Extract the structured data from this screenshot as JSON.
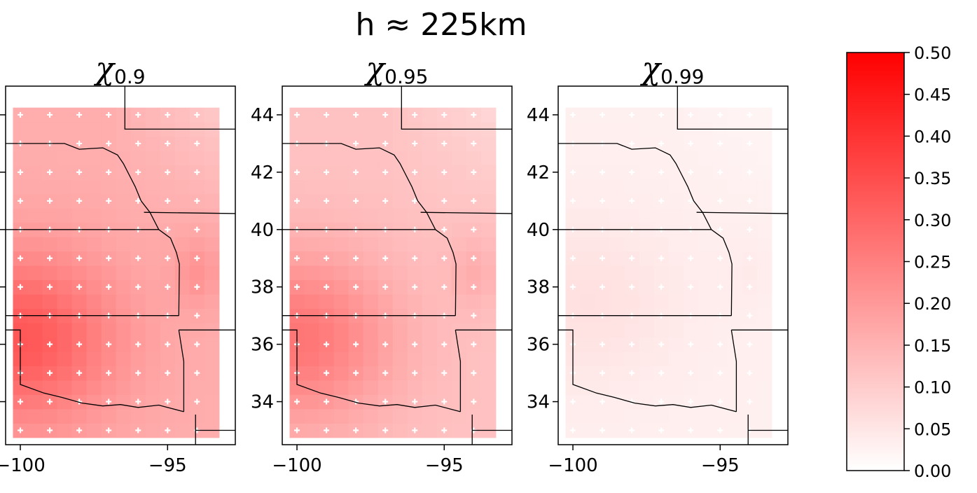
{
  "suptitle": "h ≈ 225km",
  "colors": {
    "max": "#ff0000",
    "min": "#ffffff",
    "marker": "#ffffff",
    "border": "#000000"
  },
  "chart_data": {
    "type": "heatmap",
    "colorbar": {
      "range": [
        0.0,
        0.5
      ],
      "ticks": [
        "0.00",
        "0.05",
        "0.10",
        "0.15",
        "0.20",
        "0.25",
        "0.30",
        "0.35",
        "0.40",
        "0.45",
        "0.50"
      ]
    },
    "x_ticks": [
      "−100",
      "−95"
    ],
    "y_ticks": [
      "34",
      "36",
      "38",
      "40",
      "42",
      "44"
    ],
    "xlim": [
      -100.5,
      -92.7
    ],
    "ylim": [
      32.5,
      45.0
    ],
    "grid": {
      "lon": [
        -100.0,
        -99.5,
        -99.0,
        -98.5,
        -98.0,
        -97.5,
        -97.0,
        -96.5,
        -96.0,
        -95.5,
        -95.0,
        -94.5,
        -94.0,
        -93.5
      ],
      "lat": [
        33.0,
        33.5,
        34.0,
        34.5,
        35.0,
        35.5,
        36.0,
        36.5,
        37.0,
        37.5,
        38.0,
        38.5,
        39.0,
        39.5,
        40.0,
        40.5,
        41.0,
        41.5,
        42.0,
        42.5,
        43.0,
        43.5,
        44.0
      ]
    },
    "panels": [
      {
        "title": "χ",
        "subscript": "0.9",
        "center": [
          -100.0,
          36.2
        ],
        "peak": 0.33,
        "base": 0.16,
        "east_bump": 0.05
      },
      {
        "title": "χ",
        "subscript": "0.95",
        "center": [
          -100.0,
          36.2
        ],
        "peak": 0.27,
        "base": 0.12,
        "east_bump": 0.04
      },
      {
        "title": "χ",
        "subscript": "0.99",
        "center": [
          -99.5,
          37.5
        ],
        "peak": 0.06,
        "base": 0.03,
        "east_bump": 0.01
      }
    ]
  }
}
